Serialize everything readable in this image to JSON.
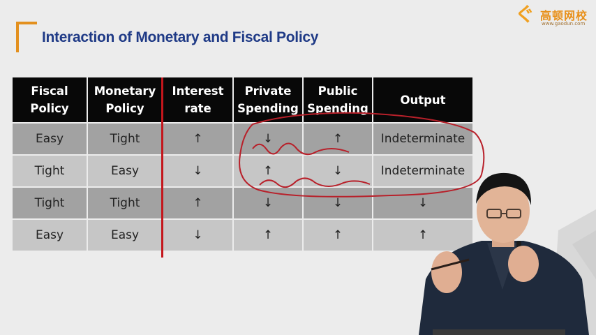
{
  "logo": {
    "brand": "高顿网校",
    "url": "www.gaodun.com"
  },
  "slide_title": "Interaction of Monetary and Fiscal Policy",
  "table": {
    "headers": [
      [
        "Fiscal",
        "Policy"
      ],
      [
        "Monetary",
        "Policy"
      ],
      [
        "Interest",
        "rate"
      ],
      [
        "Private",
        "Spending"
      ],
      [
        "Public",
        "Spending"
      ],
      [
        "Output",
        ""
      ]
    ],
    "rows": [
      [
        "Easy",
        "Tight",
        "↑",
        "↓",
        "↑",
        "Indeterminate"
      ],
      [
        "Tight",
        "Easy",
        "↓",
        "↑",
        "↓",
        "Indeterminate"
      ],
      [
        "Tight",
        "Tight",
        "↑",
        "↓",
        "↓",
        "↓"
      ],
      [
        "Easy",
        "Easy",
        "↓",
        "↑",
        "↑",
        "↑"
      ]
    ]
  },
  "colors": {
    "title": "#1f3a86",
    "accent_orange": "#e3901e",
    "divider_red": "#c4161c",
    "annotation_red": "#b8202a",
    "header_bg": "#080808",
    "row_dark": "#a2a2a2",
    "row_light": "#c6c6c6"
  }
}
